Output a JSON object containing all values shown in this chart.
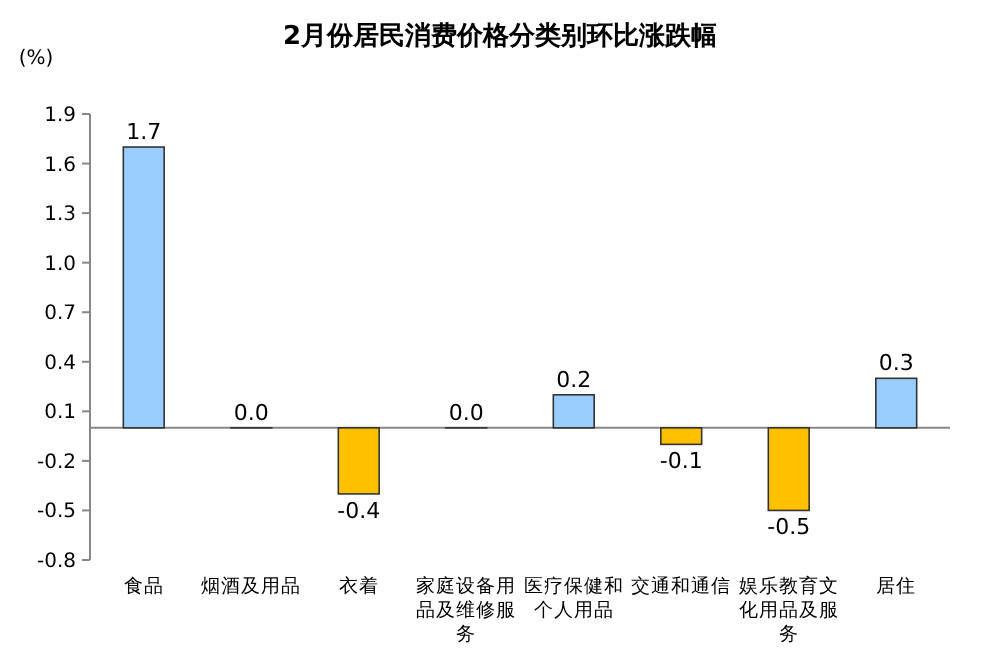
{
  "chart_data": {
    "type": "bar",
    "title": "2月份居民消费价格分类别环比涨跌幅",
    "ylabel": "(%)",
    "categories": [
      "食品",
      "烟酒及用品",
      "衣着",
      "家庭设备用品及维修服务",
      "医疗保健和个人用品",
      "交通和通信",
      "娱乐教育文化用品及服务",
      "居住"
    ],
    "values": [
      1.7,
      0.0,
      -0.4,
      0.0,
      0.2,
      -0.1,
      -0.5,
      0.3
    ],
    "colors": [
      "#99ccff",
      "#99ccff",
      "#ffc000",
      "#99ccff",
      "#99ccff",
      "#ffc000",
      "#ffc000",
      "#99ccff"
    ],
    "value_labels": [
      "1.7",
      "0.0",
      "-0.4",
      "0.0",
      "0.2",
      "-0.1",
      "-0.5",
      "0.3"
    ],
    "ylim": [
      -0.8,
      1.9
    ],
    "yticks": [
      -0.8,
      -0.5,
      -0.2,
      0.1,
      0.4,
      0.7,
      {
        "value": 1.0,
        "label": "1.0"
      },
      1.3,
      1.6,
      1.9
    ],
    "grid": false
  }
}
